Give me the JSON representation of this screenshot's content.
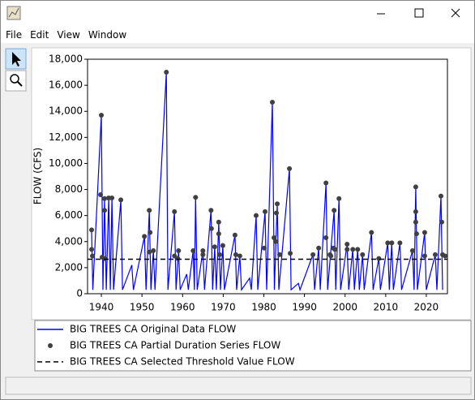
{
  "window": {
    "menu": [
      "File",
      "Edit",
      "View",
      "Window"
    ]
  },
  "chart_data": {
    "type": "line",
    "ylabel": "FLOW (CFS)",
    "xlim": [
      1936.6,
      2025.2
    ],
    "xticks": [
      1940,
      1950,
      1960,
      1970,
      1980,
      1990,
      2000,
      2010,
      2020
    ],
    "ylim": [
      0,
      18000
    ],
    "yticks": [
      0,
      {
        "value": 2000,
        "label": "2,000"
      },
      {
        "value": 4000,
        "label": "4,000"
      },
      {
        "value": 6000,
        "label": "6,000"
      },
      {
        "value": 8000,
        "label": "8,000"
      },
      {
        "value": 10000,
        "label": "10,000"
      },
      {
        "value": 12000,
        "label": "12,000"
      },
      {
        "value": 14000,
        "label": "14,000"
      },
      {
        "value": 16000,
        "label": "16,000"
      },
      {
        "value": 18000,
        "label": "18,000"
      }
    ],
    "series": [
      {
        "name": "BIG TREES CA Original Data FLOW",
        "color": "#0000ff",
        "style": "line",
        "x": [
          1937.6,
          1937.9,
          1940.0,
          1940.4,
          1940.8,
          1941.2,
          1941.8,
          1942.2,
          1942.6,
          1943.0,
          1944.8,
          1945.2,
          1947.5,
          1947.9,
          1950.6,
          1951.0,
          1951.8,
          1952.2,
          1952.8,
          1953.2,
          1956.0,
          1956.4,
          1958.0,
          1958.4,
          1959.0,
          1959.4,
          1961.0,
          1961.4,
          1962.6,
          1962.9,
          1963.2,
          1963.6,
          1965.0,
          1965.4,
          1967.0,
          1967.4,
          1967.9,
          1968.3,
          1968.9,
          1969.3,
          1969.9,
          1970.3,
          1972.9,
          1973.3,
          1974.1,
          1974.5,
          1976.5,
          1976.9,
          1978.1,
          1978.5,
          1980.3,
          1980.7,
          1982.1,
          1982.6,
          1983.3,
          1983.7,
          1986.3,
          1986.7,
          1988.5,
          1988.9,
          1992.1,
          1992.5,
          1993.5,
          1993.9,
          1995.3,
          1995.7,
          1997.3,
          1997.7,
          1998.5,
          1998.9,
          2000.5,
          2000.9,
          2001.9,
          2002.3,
          2003.1,
          2003.5,
          2004.3,
          2004.7,
          2006.5,
          2006.9,
          2008.3,
          2008.7,
          2010.5,
          2010.9,
          2011.5,
          2011.9,
          2013.5,
          2013.9,
          2016.6,
          2017.0,
          2017.4,
          2017.8,
          2019.6,
          2020.0,
          2022.2,
          2022.6,
          2023.6,
          2024.0
        ],
        "values": [
          4900,
          300,
          13700,
          300,
          7300,
          300,
          7350,
          300,
          7350,
          300,
          7200,
          300,
          2200,
          300,
          4400,
          300,
          6400,
          300,
          3300,
          300,
          17000,
          300,
          6300,
          300,
          3300,
          300,
          1500,
          300,
          3300,
          300,
          7400,
          300,
          3300,
          300,
          6400,
          300,
          3600,
          300,
          5500,
          300,
          3700,
          300,
          4500,
          300,
          2900,
          300,
          1200,
          300,
          6000,
          300,
          6300,
          300,
          14700,
          300,
          6900,
          300,
          9600,
          300,
          800,
          300,
          3000,
          300,
          3500,
          300,
          8500,
          300,
          6400,
          300,
          7300,
          300,
          3800,
          300,
          3400,
          300,
          3400,
          300,
          3000,
          300,
          4700,
          300,
          2700,
          300,
          3900,
          300,
          3900,
          300,
          3900,
          300,
          3300,
          300,
          8200,
          300,
          4700,
          300,
          3000,
          300,
          7500,
          300
        ]
      },
      {
        "name": "BIG TREES CA Partial Duration Series FLOW",
        "color": "#404040",
        "style": "points",
        "x": [
          1937.6,
          1937.6,
          1937.8,
          1939.8,
          1940.0,
          1940.2,
          1940.8,
          1940.8,
          1940.8,
          1941.8,
          1942.6,
          1944.8,
          1950.6,
          1951.8,
          1952.0,
          1951.8,
          1952.8,
          1956.0,
          1958.0,
          1958.0,
          1959.0,
          1958.8,
          1962.6,
          1963.2,
          1965.0,
          1965.0,
          1967.0,
          1967.1,
          1967.9,
          1968.9,
          1968.9,
          1969.1,
          1969.9,
          1972.9,
          1973.1,
          1974.1,
          1978.1,
          1980.1,
          1980.3,
          1982.1,
          1982.5,
          1982.9,
          1983.1,
          1983.3,
          1983.9,
          1986.3,
          1986.5,
          1992.1,
          1993.5,
          1995.3,
          1995.3,
          1996.3,
          1996.5,
          1997.1,
          1997.3,
          1997.5,
          1998.5,
          2000.5,
          2000.5,
          2001.9,
          2003.1,
          2004.3,
          2006.5,
          2008.3,
          2010.5,
          2011.5,
          2013.5,
          2016.6,
          2017.4,
          2017.4,
          2017.4,
          2017.6,
          2019.6,
          2019.6,
          2022.2,
          2023.6,
          2023.8,
          2024.0,
          2024.6
        ],
        "values": [
          4900,
          3400,
          2900,
          7600,
          13700,
          2800,
          7300,
          6400,
          2700,
          7350,
          7350,
          7200,
          4400,
          6400,
          4700,
          3200,
          3300,
          17000,
          6300,
          2900,
          3300,
          2700,
          3300,
          7400,
          3300,
          3000,
          6400,
          5000,
          3600,
          5500,
          4600,
          3000,
          3700,
          4500,
          3000,
          2900,
          6000,
          3500,
          6300,
          14700,
          4300,
          4000,
          6200,
          6900,
          3000,
          9600,
          3100,
          3000,
          3500,
          8500,
          4300,
          3000,
          2900,
          3500,
          6400,
          3400,
          7300,
          3800,
          3400,
          3400,
          3400,
          3000,
          4700,
          2700,
          3900,
          3900,
          3900,
          3300,
          8200,
          6300,
          5500,
          4600,
          4700,
          2900,
          3000,
          7500,
          5500,
          3000,
          2900
        ]
      },
      {
        "name": "BIG TREES CA Selected Threshold Value FLOW",
        "color": "#000000",
        "style": "dashed",
        "x": [
          1936.6,
          2025.2
        ],
        "values": [
          2650,
          2650
        ]
      }
    ]
  }
}
